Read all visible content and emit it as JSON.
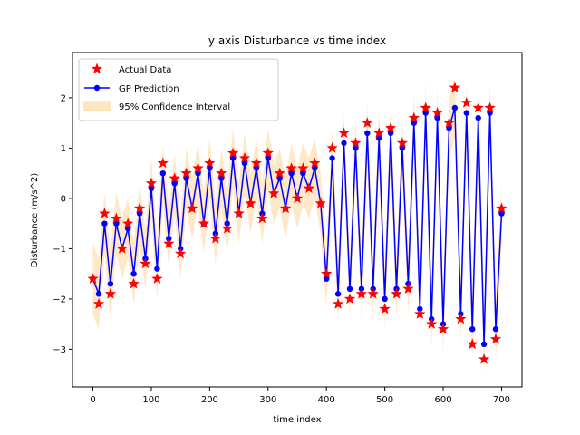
{
  "chart_data": {
    "type": "line",
    "title": "y axis Disturbance vs time index",
    "xlabel": "time index",
    "ylabel": "Disturbance (m/s^2)",
    "xlim": [
      -35,
      735
    ],
    "ylim": [
      -3.75,
      2.9
    ],
    "xticks": [
      0,
      100,
      200,
      300,
      400,
      500,
      600,
      700
    ],
    "yticks": [
      -3,
      -2,
      -1,
      0,
      1,
      2
    ],
    "grid": false,
    "legend_placement": "top-left",
    "legend": [
      {
        "label": "Actual Data",
        "marker": "star",
        "color": "#ff0000"
      },
      {
        "label": "GP Prediction",
        "marker": "line-circle",
        "color": "#0000ff"
      },
      {
        "label": "95% Confidence Interval",
        "marker": "patch",
        "color": "#ffd699"
      }
    ],
    "series": [
      {
        "name": "Actual Data",
        "style": "star-markers",
        "color": "#ff0000",
        "x": [
          0,
          10,
          20,
          30,
          40,
          50,
          60,
          70,
          80,
          90,
          100,
          110,
          120,
          130,
          140,
          150,
          160,
          170,
          180,
          190,
          200,
          210,
          220,
          230,
          240,
          250,
          260,
          270,
          280,
          290,
          300,
          310,
          320,
          330,
          340,
          350,
          360,
          370,
          380,
          390,
          400,
          410,
          420,
          430,
          440,
          450,
          460,
          470,
          480,
          490,
          500,
          510,
          520,
          530,
          540,
          550,
          560,
          570,
          580,
          590,
          600,
          610,
          620,
          630,
          640,
          650,
          660,
          670,
          680,
          690,
          700
        ],
        "y": [
          -1.6,
          -2.1,
          -0.3,
          -1.9,
          -0.4,
          -1.0,
          -0.5,
          -1.7,
          -0.2,
          -1.3,
          0.3,
          -1.6,
          0.7,
          -0.9,
          0.4,
          -1.1,
          0.5,
          -0.2,
          0.6,
          -0.5,
          0.7,
          -0.8,
          0.5,
          -0.6,
          0.9,
          -0.3,
          0.8,
          -0.1,
          0.7,
          -0.4,
          0.9,
          0.1,
          0.5,
          -0.2,
          0.6,
          0.0,
          0.6,
          0.2,
          0.7,
          -0.1,
          -1.5,
          1.0,
          -2.1,
          1.3,
          -2.0,
          1.1,
          -1.9,
          1.5,
          -1.9,
          1.3,
          -2.2,
          1.4,
          -1.9,
          1.1,
          -1.8,
          1.6,
          -2.3,
          1.8,
          -2.5,
          1.7,
          -2.6,
          1.5,
          2.2,
          -2.4,
          1.9,
          -2.9,
          1.8,
          -3.2,
          1.8,
          -2.8,
          -0.2
        ]
      },
      {
        "name": "GP Prediction",
        "style": "line-circle-markers",
        "color": "#0000ff",
        "x": [
          0,
          10,
          20,
          30,
          40,
          50,
          60,
          70,
          80,
          90,
          100,
          110,
          120,
          130,
          140,
          150,
          160,
          170,
          180,
          190,
          200,
          210,
          220,
          230,
          240,
          250,
          260,
          270,
          280,
          290,
          300,
          310,
          320,
          330,
          340,
          350,
          360,
          370,
          380,
          390,
          400,
          410,
          420,
          430,
          440,
          450,
          460,
          470,
          480,
          490,
          500,
          510,
          520,
          530,
          540,
          550,
          560,
          570,
          580,
          590,
          600,
          610,
          620,
          630,
          640,
          650,
          660,
          670,
          680,
          690,
          700
        ],
        "y": [
          -1.6,
          -1.9,
          -0.5,
          -1.7,
          -0.5,
          -1.0,
          -0.6,
          -1.5,
          -0.3,
          -1.2,
          0.2,
          -1.4,
          0.5,
          -0.8,
          0.3,
          -1.0,
          0.4,
          -0.2,
          0.5,
          -0.5,
          0.6,
          -0.7,
          0.4,
          -0.5,
          0.8,
          -0.3,
          0.7,
          -0.1,
          0.6,
          -0.3,
          0.8,
          0.1,
          0.4,
          -0.2,
          0.5,
          0.0,
          0.5,
          0.2,
          0.6,
          -0.1,
          -1.6,
          0.8,
          -1.9,
          1.1,
          -1.8,
          1.0,
          -1.8,
          1.3,
          -1.8,
          1.2,
          -2.0,
          1.3,
          -1.8,
          1.0,
          -1.7,
          1.5,
          -2.2,
          1.7,
          -2.4,
          1.6,
          -2.5,
          1.4,
          1.8,
          -2.3,
          1.7,
          -2.6,
          1.6,
          -2.9,
          1.7,
          -2.6,
          -0.3
        ]
      },
      {
        "name": "95% Confidence Interval",
        "style": "band",
        "color": "#ffd699",
        "x": [
          0,
          10,
          20,
          30,
          40,
          50,
          60,
          70,
          80,
          90,
          100,
          110,
          120,
          130,
          140,
          150,
          160,
          170,
          180,
          190,
          200,
          210,
          220,
          230,
          240,
          250,
          260,
          270,
          280,
          290,
          300,
          310,
          320,
          330,
          340,
          350,
          360,
          370,
          380,
          390,
          400,
          410,
          420,
          430,
          440,
          450,
          460,
          470,
          480,
          490,
          500,
          510,
          520,
          530,
          540,
          550,
          560,
          570,
          580,
          590,
          600,
          610,
          620,
          630,
          640,
          650,
          660,
          670,
          680,
          690,
          700
        ],
        "lower": [
          -2.3,
          -2.6,
          -1.1,
          -2.4,
          -1.1,
          -1.6,
          -1.2,
          -2.1,
          -0.9,
          -1.8,
          -0.4,
          -2.0,
          -0.1,
          -1.4,
          -0.3,
          -1.6,
          -0.2,
          -0.8,
          -0.1,
          -1.1,
          0.0,
          -1.3,
          -0.2,
          -1.1,
          0.2,
          -0.9,
          0.1,
          -0.7,
          0.0,
          -0.9,
          0.2,
          -0.5,
          -0.2,
          -0.8,
          -0.1,
          -0.6,
          -0.1,
          -0.4,
          0.0,
          -0.7,
          -2.2,
          0.2,
          -2.5,
          0.5,
          -2.4,
          0.4,
          -2.4,
          0.7,
          -2.4,
          0.6,
          -2.6,
          0.7,
          -2.4,
          0.4,
          -2.3,
          0.9,
          -2.8,
          1.1,
          -3.0,
          1.0,
          -3.1,
          0.8,
          1.2,
          -2.9,
          1.1,
          -3.2,
          1.0,
          -3.5,
          1.1,
          -3.2,
          -0.9
        ],
        "upper": [
          -0.9,
          -1.2,
          0.1,
          -1.0,
          0.1,
          -0.4,
          0.0,
          -0.9,
          0.3,
          -0.6,
          0.8,
          -0.8,
          1.1,
          -0.2,
          0.9,
          -0.4,
          1.0,
          0.4,
          1.1,
          0.1,
          1.2,
          -0.1,
          1.0,
          0.1,
          1.4,
          0.3,
          1.3,
          0.5,
          1.2,
          0.3,
          1.4,
          0.7,
          1.0,
          0.4,
          1.1,
          0.6,
          1.1,
          0.8,
          1.2,
          0.5,
          -1.0,
          1.4,
          -1.3,
          1.7,
          -1.2,
          1.6,
          -1.2,
          1.9,
          -1.2,
          1.8,
          -1.4,
          1.9,
          -1.2,
          1.6,
          -1.1,
          2.1,
          -1.6,
          2.3,
          -1.8,
          2.2,
          -1.9,
          2.0,
          2.4,
          -1.7,
          2.3,
          -2.0,
          2.2,
          -2.3,
          2.3,
          -2.0,
          0.3
        ]
      }
    ]
  }
}
